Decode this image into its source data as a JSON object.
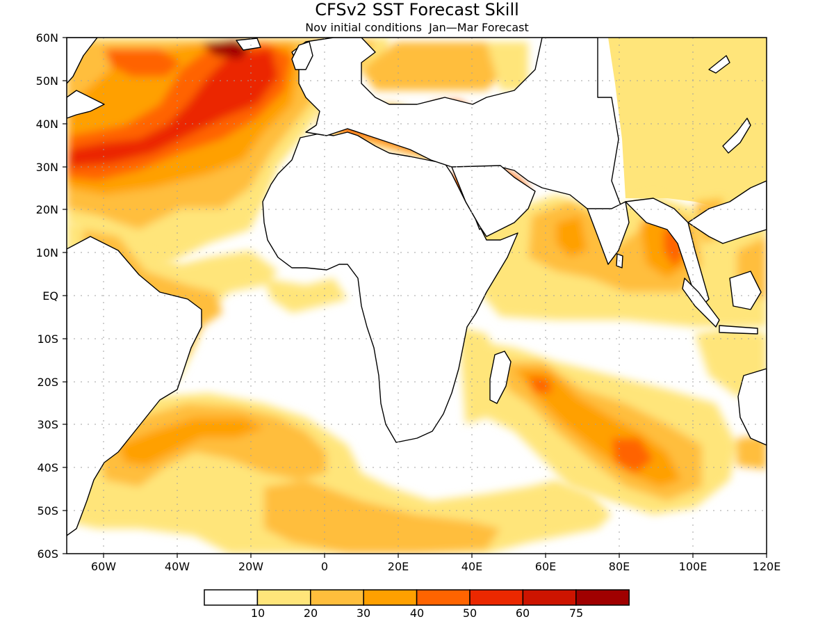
{
  "title": "CFSv2 SST Forecast Skill",
  "subtitle": "Nov initial conditions  Jan—Mar Forecast",
  "lat_labels": [
    "60N",
    "50N",
    "40N",
    "30N",
    "20N",
    "10N",
    "EQ",
    "10S",
    "20S",
    "30S",
    "40S",
    "50S",
    "60S"
  ],
  "lon_labels": [
    "60W",
    "40W",
    "20W",
    "0",
    "20E",
    "40E",
    "60E",
    "80E",
    "100E",
    "120E"
  ],
  "legend": {
    "labels": [
      "10",
      "20",
      "30",
      "40",
      "50",
      "60",
      "75"
    ],
    "colors": [
      "#ffffff",
      "#ffe57a",
      "#ffbe3c",
      "#ffa000",
      "#ff6400",
      "#eb2800",
      "#cd1400",
      "#a00000"
    ]
  },
  "map_extent": {
    "lon": [
      -70,
      120
    ],
    "lat": [
      -60,
      60
    ]
  }
}
